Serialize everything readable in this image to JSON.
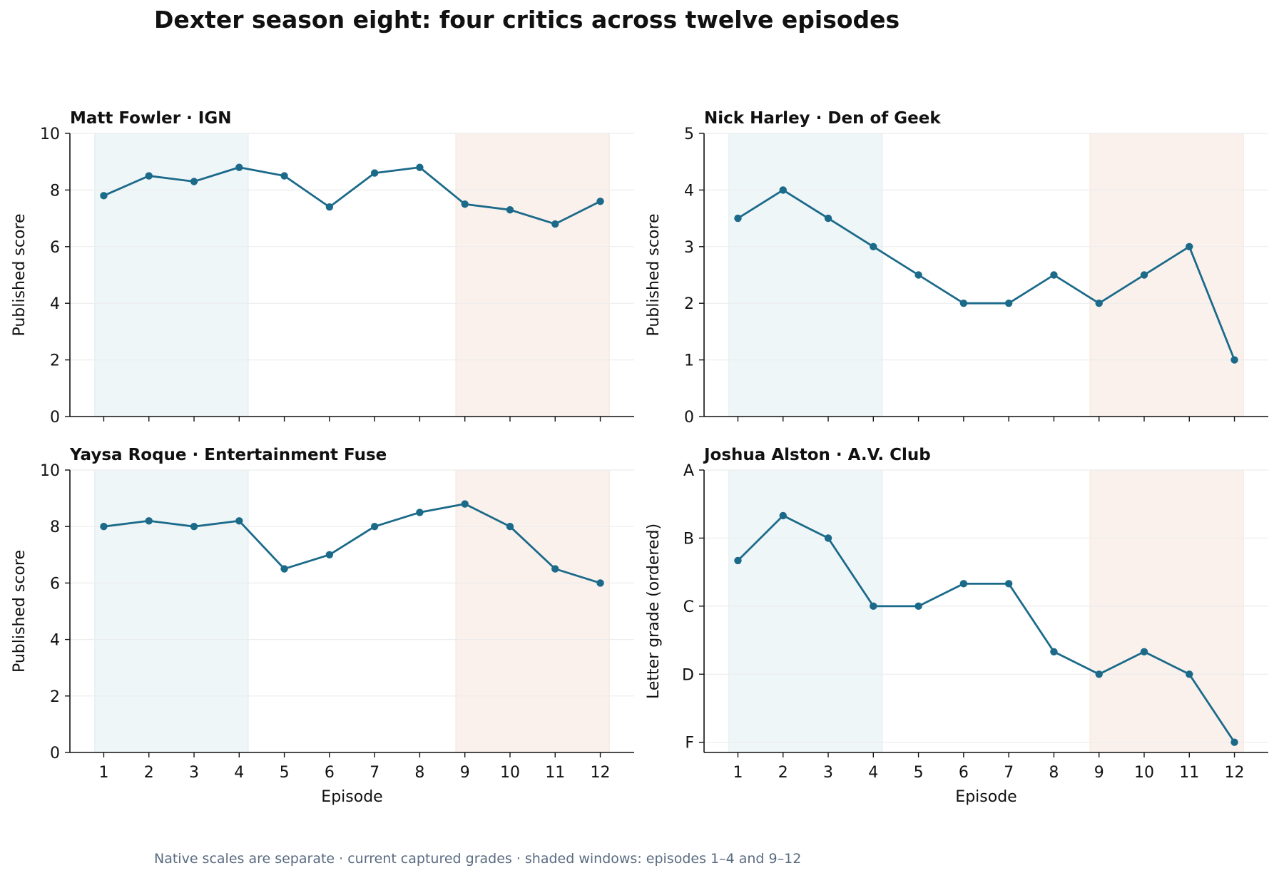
{
  "page": {
    "title": "Dexter season eight: four critics across twelve episodes",
    "footnote": "Native scales are separate · current captured grades · shaded windows: episodes 1–4 and 9–12"
  },
  "colors": {
    "line": "#1b6a8a",
    "early_window": "#dcebf0",
    "late_window": "#f6e3dc",
    "grid": "#ececec",
    "axis": "#111111"
  },
  "chart_data": [
    {
      "type": "line",
      "title": "Matt Fowler · IGN",
      "xlabel": "",
      "ylabel": "Published score",
      "x": [
        1,
        2,
        3,
        4,
        5,
        6,
        7,
        8,
        9,
        10,
        11,
        12
      ],
      "values": [
        7.8,
        8.5,
        8.3,
        8.8,
        8.5,
        7.4,
        8.6,
        8.8,
        7.5,
        7.3,
        6.8,
        7.6
      ],
      "ylim": [
        0,
        10
      ],
      "yticks": [
        0,
        2,
        4,
        6,
        8,
        10
      ],
      "yticklabels": [
        "0",
        "2",
        "4",
        "6",
        "8",
        "10"
      ],
      "xticklabels": [],
      "shaded_windows": [
        [
          1,
          4
        ],
        [
          9,
          12
        ]
      ],
      "grid": "horizontal"
    },
    {
      "type": "line",
      "title": "Nick Harley · Den of Geek",
      "xlabel": "",
      "ylabel": "Published score",
      "x": [
        1,
        2,
        3,
        4,
        5,
        6,
        7,
        8,
        9,
        10,
        11,
        12
      ],
      "values": [
        3.5,
        4,
        3.5,
        3,
        2.5,
        2,
        2,
        2.5,
        2,
        2.5,
        3,
        1
      ],
      "ylim": [
        0,
        5
      ],
      "yticks": [
        0,
        1,
        2,
        3,
        4,
        5
      ],
      "yticklabels": [
        "0",
        "1",
        "2",
        "3",
        "4",
        "5"
      ],
      "xticklabels": [],
      "shaded_windows": [
        [
          1,
          4
        ],
        [
          9,
          12
        ]
      ],
      "grid": "horizontal"
    },
    {
      "type": "line",
      "title": "Yaysa Roque · Entertainment Fuse",
      "xlabel": "Episode",
      "ylabel": "Published score",
      "x": [
        1,
        2,
        3,
        4,
        5,
        6,
        7,
        8,
        9,
        10,
        11,
        12
      ],
      "values": [
        8,
        8.2,
        8,
        8.2,
        6.5,
        7,
        8,
        8.5,
        8.8,
        8,
        6.5,
        6
      ],
      "ylim": [
        0,
        10
      ],
      "yticks": [
        0,
        2,
        4,
        6,
        8,
        10
      ],
      "yticklabels": [
        "0",
        "2",
        "4",
        "6",
        "8",
        "10"
      ],
      "xticklabels": [
        "1",
        "2",
        "3",
        "4",
        "5",
        "6",
        "7",
        "8",
        "9",
        "10",
        "11",
        "12"
      ],
      "shaded_windows": [
        [
          1,
          4
        ],
        [
          9,
          12
        ]
      ],
      "grid": "horizontal"
    },
    {
      "type": "line",
      "title": "Joshua Alston · A.V. Club",
      "xlabel": "Episode",
      "ylabel": "Letter grade (ordered)",
      "x": [
        1,
        2,
        3,
        4,
        5,
        6,
        7,
        8,
        9,
        10,
        11,
        12
      ],
      "values": [
        2.67,
        3.33,
        3,
        2,
        2,
        2.33,
        2.33,
        1.33,
        1,
        1.33,
        1,
        0
      ],
      "ylim": [
        -0.15,
        4.0
      ],
      "yticks": [
        0,
        1,
        2,
        3,
        4
      ],
      "yticklabels": [
        "F",
        "D",
        "C",
        "B",
        "A"
      ],
      "xticklabels": [
        "1",
        "2",
        "3",
        "4",
        "5",
        "6",
        "7",
        "8",
        "9",
        "10",
        "11",
        "12"
      ],
      "shaded_windows": [
        [
          1,
          4
        ],
        [
          9,
          12
        ]
      ],
      "grid": "horizontal"
    }
  ]
}
